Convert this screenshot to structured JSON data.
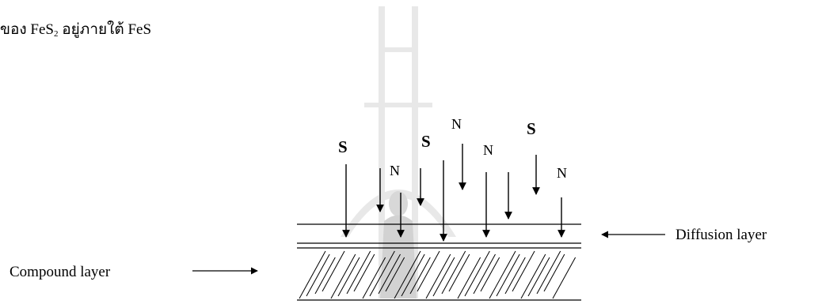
{
  "heading": {
    "before": "ของ FeS",
    "subscript": "2",
    "after": " อยู่ภายใต้ FeS"
  },
  "diagram": {
    "species": {
      "sulfur": "S",
      "nitrogen": "N"
    },
    "labels": {
      "diffusion_layer": "Diffusion layer",
      "compound_layer": "Compound layer"
    }
  },
  "colors": {
    "ink": "#000000",
    "background": "#ffffff",
    "watermark": "#e6e6e6"
  }
}
